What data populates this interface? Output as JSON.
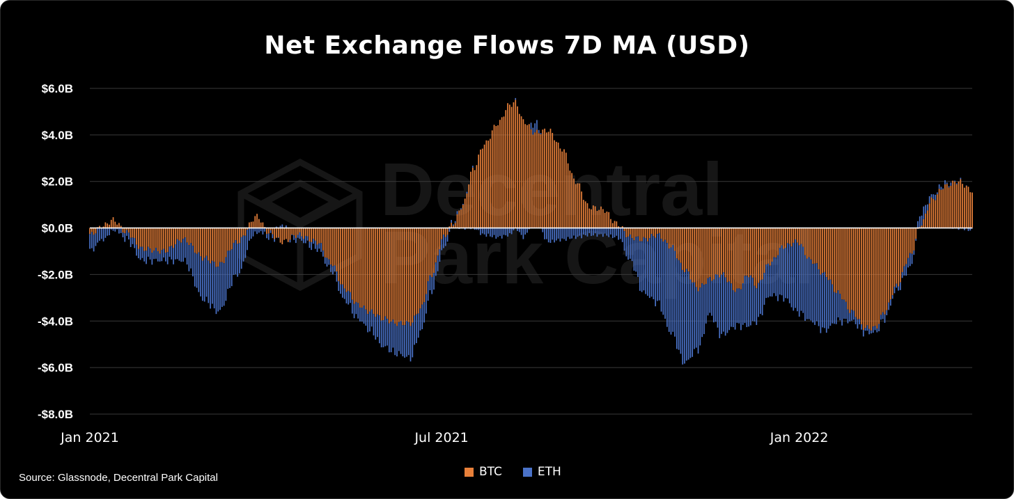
{
  "colors": {
    "background": "#000000",
    "btc": "#E8803A",
    "eth": "#4A72C8",
    "zero_line": "#ffffff",
    "grid": "#3a3a3a"
  },
  "watermark": {
    "line1": "Decentral",
    "line2": "Park Capital"
  },
  "footer": {
    "source": "Source: Glassnode, Decentral Park Capital"
  },
  "chart_data": {
    "type": "bar",
    "stacked": true,
    "title": "Net Exchange Flows 7D MA (USD)",
    "xlabel": "",
    "ylabel": "",
    "ylim": [
      -8.0,
      6.0
    ],
    "y_ticks": [
      {
        "value": 6,
        "label": "$6.0B"
      },
      {
        "value": 4,
        "label": "$4.0B"
      },
      {
        "value": 2,
        "label": "$2.0B"
      },
      {
        "value": 0,
        "label": "$0.0B"
      },
      {
        "value": -2,
        "label": "-$2.0B"
      },
      {
        "value": -4,
        "label": "-$4.0B"
      },
      {
        "value": -6,
        "label": "-$6.0B"
      },
      {
        "value": -8,
        "label": "-$8.0B"
      }
    ],
    "x_ticks": [
      {
        "date": "2021-01-01",
        "label": "Jan 2021"
      },
      {
        "date": "2021-07-01",
        "label": "Jul 2021"
      },
      {
        "date": "2022-01-01",
        "label": "Jan 2022"
      }
    ],
    "x_range": [
      "2021-01-01",
      "2022-03-31"
    ],
    "grid": true,
    "legend_position": "bottom-center",
    "series": [
      {
        "name": "BTC",
        "color": "#E8803A",
        "points": [
          [
            "2021-01-01",
            -0.3
          ],
          [
            "2021-01-08",
            0.1
          ],
          [
            "2021-01-13",
            0.35
          ],
          [
            "2021-01-20",
            -0.2
          ],
          [
            "2021-01-28",
            -0.9
          ],
          [
            "2021-02-08",
            -1.0
          ],
          [
            "2021-02-18",
            -0.5
          ],
          [
            "2021-03-01",
            -1.3
          ],
          [
            "2021-03-08",
            -1.6
          ],
          [
            "2021-03-18",
            -0.6
          ],
          [
            "2021-03-28",
            0.5
          ],
          [
            "2021-04-03",
            -0.2
          ],
          [
            "2021-04-10",
            -0.6
          ],
          [
            "2021-04-18",
            -0.3
          ],
          [
            "2021-04-28",
            -0.6
          ],
          [
            "2021-05-05",
            -1.5
          ],
          [
            "2021-05-12",
            -2.6
          ],
          [
            "2021-05-19",
            -3.3
          ],
          [
            "2021-05-25",
            -3.6
          ],
          [
            "2021-06-01",
            -3.9
          ],
          [
            "2021-06-08",
            -4.1
          ],
          [
            "2021-06-15",
            -4.1
          ],
          [
            "2021-06-20",
            -3.5
          ],
          [
            "2021-06-26",
            -2.0
          ],
          [
            "2021-07-02",
            -0.4
          ],
          [
            "2021-07-07",
            0.2
          ],
          [
            "2021-07-12",
            1.0
          ],
          [
            "2021-07-17",
            2.5
          ],
          [
            "2021-07-23",
            3.6
          ],
          [
            "2021-07-30",
            4.5
          ],
          [
            "2021-08-05",
            5.3
          ],
          [
            "2021-08-08",
            5.4
          ],
          [
            "2021-08-12",
            4.6
          ],
          [
            "2021-08-18",
            4.1
          ],
          [
            "2021-08-25",
            4.2
          ],
          [
            "2021-09-01",
            3.4
          ],
          [
            "2021-09-08",
            2.0
          ],
          [
            "2021-09-15",
            0.9
          ],
          [
            "2021-09-22",
            0.8
          ],
          [
            "2021-09-29",
            0.2
          ],
          [
            "2021-10-06",
            -0.4
          ],
          [
            "2021-10-13",
            -0.5
          ],
          [
            "2021-10-20",
            -0.3
          ],
          [
            "2021-10-27",
            -0.8
          ],
          [
            "2021-11-03",
            -1.8
          ],
          [
            "2021-11-10",
            -2.6
          ],
          [
            "2021-11-16",
            -2.2
          ],
          [
            "2021-11-22",
            -2.0
          ],
          [
            "2021-11-30",
            -2.7
          ],
          [
            "2021-12-06",
            -2.0
          ],
          [
            "2021-12-10",
            -2.5
          ],
          [
            "2021-12-17",
            -1.5
          ],
          [
            "2021-12-24",
            -0.8
          ],
          [
            "2021-12-31",
            -0.6
          ],
          [
            "2022-01-07",
            -1.4
          ],
          [
            "2022-01-14",
            -2.0
          ],
          [
            "2022-01-21",
            -2.8
          ],
          [
            "2022-01-28",
            -3.6
          ],
          [
            "2022-02-04",
            -4.3
          ],
          [
            "2022-02-09",
            -4.3
          ],
          [
            "2022-02-14",
            -3.6
          ],
          [
            "2022-02-20",
            -2.5
          ],
          [
            "2022-02-27",
            -1.2
          ],
          [
            "2022-03-05",
            0.2
          ],
          [
            "2022-03-10",
            1.2
          ],
          [
            "2022-03-17",
            1.8
          ],
          [
            "2022-03-24",
            2.0
          ],
          [
            "2022-03-31",
            1.6
          ]
        ]
      },
      {
        "name": "ETH",
        "color": "#4A72C8",
        "points": [
          [
            "2021-01-01",
            -0.7
          ],
          [
            "2021-01-08",
            -0.5
          ],
          [
            "2021-01-13",
            -0.1
          ],
          [
            "2021-01-20",
            -0.3
          ],
          [
            "2021-01-28",
            -0.5
          ],
          [
            "2021-02-08",
            -0.4
          ],
          [
            "2021-02-18",
            -0.9
          ],
          [
            "2021-03-01",
            -1.8
          ],
          [
            "2021-03-08",
            -2.0
          ],
          [
            "2021-03-18",
            -1.4
          ],
          [
            "2021-03-28",
            -0.2
          ],
          [
            "2021-04-03",
            -0.2
          ],
          [
            "2021-04-10",
            0.1
          ],
          [
            "2021-04-18",
            -0.2
          ],
          [
            "2021-04-28",
            -0.3
          ],
          [
            "2021-05-05",
            -0.3
          ],
          [
            "2021-05-12",
            -0.5
          ],
          [
            "2021-05-19",
            -0.6
          ],
          [
            "2021-05-25",
            -0.8
          ],
          [
            "2021-06-01",
            -1.2
          ],
          [
            "2021-06-08",
            -1.3
          ],
          [
            "2021-06-15",
            -1.5
          ],
          [
            "2021-06-20",
            -1.0
          ],
          [
            "2021-06-26",
            -0.7
          ],
          [
            "2021-07-02",
            -0.5
          ],
          [
            "2021-07-07",
            0.1
          ],
          [
            "2021-07-12",
            0.0
          ],
          [
            "2021-07-17",
            0.0
          ],
          [
            "2021-07-23",
            -0.3
          ],
          [
            "2021-07-30",
            -0.4
          ],
          [
            "2021-08-05",
            -0.3
          ],
          [
            "2021-08-08",
            0.0
          ],
          [
            "2021-08-12",
            -0.4
          ],
          [
            "2021-08-18",
            0.4
          ],
          [
            "2021-08-25",
            -0.6
          ],
          [
            "2021-09-01",
            -0.5
          ],
          [
            "2021-09-08",
            -0.4
          ],
          [
            "2021-09-15",
            -0.3
          ],
          [
            "2021-09-22",
            -0.3
          ],
          [
            "2021-09-29",
            -0.4
          ],
          [
            "2021-10-06",
            -1.0
          ],
          [
            "2021-10-13",
            -2.3
          ],
          [
            "2021-10-20",
            -2.9
          ],
          [
            "2021-10-27",
            -3.7
          ],
          [
            "2021-11-03",
            -4.0
          ],
          [
            "2021-11-10",
            -2.6
          ],
          [
            "2021-11-16",
            -1.5
          ],
          [
            "2021-11-22",
            -2.6
          ],
          [
            "2021-11-30",
            -1.5
          ],
          [
            "2021-12-06",
            -2.2
          ],
          [
            "2021-12-10",
            -1.5
          ],
          [
            "2021-12-17",
            -1.4
          ],
          [
            "2021-12-24",
            -2.2
          ],
          [
            "2021-12-31",
            -3.0
          ],
          [
            "2022-01-07",
            -2.6
          ],
          [
            "2022-01-14",
            -2.4
          ],
          [
            "2022-01-21",
            -1.2
          ],
          [
            "2022-01-28",
            -0.4
          ],
          [
            "2022-02-04",
            -0.2
          ],
          [
            "2022-02-09",
            -0.2
          ],
          [
            "2022-02-14",
            -0.3
          ],
          [
            "2022-02-20",
            -0.2
          ],
          [
            "2022-02-27",
            -0.5
          ],
          [
            "2022-03-05",
            0.5
          ],
          [
            "2022-03-10",
            0.2
          ],
          [
            "2022-03-17",
            0.1
          ],
          [
            "2022-03-24",
            0.0
          ],
          [
            "2022-03-31",
            -0.1
          ]
        ]
      }
    ]
  }
}
